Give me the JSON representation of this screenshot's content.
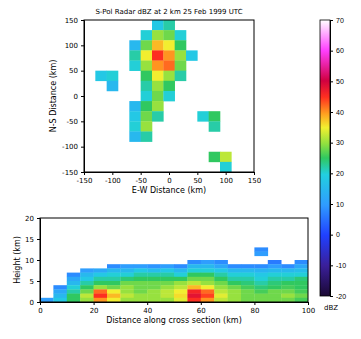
{
  "chart_data": [
    {
      "type": "heatmap",
      "title": "S-Pol Radar dBZ at 2 km 25 Feb 1999 UTC",
      "x_label": "E-W Distance (km)",
      "y_label": "N-S Distance (km)",
      "xlim": [
        -150,
        150
      ],
      "xticks": [
        -150,
        -100,
        -50,
        0,
        50,
        100,
        150
      ],
      "ylim": [
        -150,
        150
      ],
      "yticks": [
        -150,
        -100,
        -50,
        0,
        50,
        100,
        150
      ],
      "x": [
        -140,
        -120,
        -100,
        -80,
        -60,
        -40,
        -20,
        0,
        20,
        40,
        60,
        80,
        100,
        120,
        140
      ],
      "y": [
        140,
        120,
        100,
        80,
        60,
        40,
        20,
        0,
        -20,
        -40,
        -60,
        -80,
        -100,
        -120,
        -140
      ],
      "z": [
        [
          null,
          null,
          null,
          null,
          null,
          null,
          18,
          22,
          null,
          null,
          null,
          null,
          null,
          null,
          null
        ],
        [
          null,
          null,
          null,
          null,
          null,
          20,
          30,
          28,
          20,
          null,
          null,
          null,
          null,
          null,
          null
        ],
        [
          null,
          null,
          null,
          null,
          15,
          28,
          38,
          35,
          25,
          null,
          null,
          null,
          null,
          null,
          null
        ],
        [
          null,
          null,
          null,
          null,
          22,
          35,
          45,
          40,
          30,
          18,
          null,
          null,
          null,
          null,
          null
        ],
        [
          null,
          null,
          null,
          null,
          20,
          30,
          40,
          42,
          28,
          null,
          null,
          null,
          null,
          null,
          null
        ],
        [
          null,
          18,
          20,
          null,
          null,
          25,
          35,
          30,
          22,
          null,
          null,
          null,
          null,
          null,
          null
        ],
        [
          null,
          null,
          15,
          null,
          null,
          22,
          30,
          25,
          null,
          null,
          null,
          null,
          null,
          null,
          null
        ],
        [
          null,
          null,
          null,
          null,
          null,
          20,
          28,
          20,
          null,
          null,
          null,
          null,
          null,
          null,
          null
        ],
        [
          null,
          null,
          null,
          null,
          15,
          25,
          30,
          null,
          null,
          null,
          null,
          null,
          null,
          null,
          null
        ],
        [
          null,
          null,
          null,
          null,
          18,
          28,
          22,
          null,
          null,
          null,
          20,
          25,
          null,
          null,
          null
        ],
        [
          null,
          null,
          null,
          null,
          20,
          30,
          null,
          null,
          null,
          null,
          null,
          22,
          null,
          null,
          null
        ],
        [
          null,
          null,
          null,
          null,
          15,
          22,
          null,
          null,
          null,
          null,
          null,
          null,
          null,
          null,
          null
        ],
        [
          null,
          null,
          null,
          null,
          null,
          null,
          null,
          null,
          null,
          null,
          null,
          null,
          null,
          null,
          null
        ],
        [
          null,
          null,
          null,
          null,
          null,
          null,
          null,
          null,
          null,
          null,
          null,
          25,
          32,
          null,
          null
        ],
        [
          null,
          null,
          null,
          null,
          null,
          null,
          null,
          null,
          null,
          null,
          null,
          null,
          20,
          null,
          null
        ]
      ],
      "colorbar": {
        "lim": [
          -20,
          70
        ],
        "ticks": [
          -20,
          -10,
          0,
          10,
          20,
          30,
          40,
          50,
          60,
          70
        ],
        "title": "dBZ"
      }
    },
    {
      "type": "heatmap",
      "x_label": "Distance along cross section (km)",
      "y_label": "Height (km)",
      "xlim": [
        0,
        100
      ],
      "xticks": [
        0,
        20,
        40,
        60,
        80,
        100
      ],
      "ylim": [
        0,
        20
      ],
      "yticks": [
        0,
        5,
        10,
        15,
        20
      ],
      "x": [
        2.5,
        7.5,
        12.5,
        17.5,
        22.5,
        27.5,
        32.5,
        37.5,
        42.5,
        47.5,
        52.5,
        57.5,
        62.5,
        67.5,
        72.5,
        77.5,
        82.5,
        87.5,
        92.5,
        97.5
      ],
      "y": [
        12.5,
        11.5,
        10.5,
        9.5,
        8.5,
        7.5,
        6.5,
        5.5,
        4.5,
        3.5,
        2.5,
        1.5,
        0.5
      ],
      "z": [
        [
          null,
          null,
          null,
          null,
          null,
          null,
          null,
          null,
          null,
          null,
          null,
          null,
          null,
          null,
          null,
          null,
          8,
          null,
          null,
          null
        ],
        [
          null,
          null,
          null,
          null,
          null,
          null,
          null,
          null,
          null,
          null,
          null,
          null,
          null,
          null,
          null,
          null,
          10,
          null,
          null,
          null
        ],
        [
          null,
          null,
          null,
          null,
          null,
          null,
          null,
          null,
          null,
          null,
          null,
          null,
          null,
          null,
          null,
          null,
          null,
          null,
          null,
          null
        ],
        [
          null,
          null,
          null,
          null,
          null,
          null,
          null,
          null,
          null,
          null,
          null,
          8,
          10,
          8,
          null,
          null,
          null,
          6,
          null,
          8
        ],
        [
          null,
          null,
          null,
          null,
          null,
          8,
          10,
          10,
          9,
          10,
          8,
          15,
          15,
          12,
          8,
          8,
          8,
          10,
          8,
          12
        ],
        [
          null,
          null,
          null,
          10,
          12,
          15,
          15,
          18,
          16,
          18,
          15,
          20,
          20,
          18,
          15,
          15,
          14,
          15,
          15,
          16
        ],
        [
          null,
          null,
          8,
          15,
          18,
          20,
          20,
          22,
          22,
          22,
          20,
          25,
          25,
          22,
          20,
          20,
          18,
          20,
          20,
          20
        ],
        [
          null,
          null,
          12,
          18,
          22,
          22,
          24,
          25,
          25,
          25,
          25,
          28,
          28,
          25,
          22,
          22,
          20,
          22,
          22,
          24
        ],
        [
          null,
          null,
          15,
          22,
          25,
          25,
          28,
          28,
          28,
          28,
          30,
          32,
          30,
          28,
          25,
          24,
          22,
          24,
          25,
          25
        ],
        [
          null,
          8,
          20,
          25,
          30,
          28,
          30,
          28,
          28,
          30,
          32,
          38,
          35,
          30,
          28,
          26,
          24,
          25,
          26,
          25
        ],
        [
          null,
          12,
          22,
          28,
          42,
          35,
          30,
          28,
          30,
          32,
          35,
          46,
          42,
          32,
          30,
          28,
          26,
          28,
          28,
          26
        ],
        [
          null,
          15,
          25,
          32,
          45,
          38,
          32,
          30,
          30,
          32,
          36,
          48,
          44,
          34,
          30,
          28,
          28,
          28,
          30,
          28
        ],
        [
          10,
          18,
          25,
          30,
          40,
          35,
          30,
          30,
          30,
          30,
          34,
          45,
          40,
          32,
          30,
          28,
          28,
          28,
          28,
          26
        ]
      ]
    }
  ]
}
